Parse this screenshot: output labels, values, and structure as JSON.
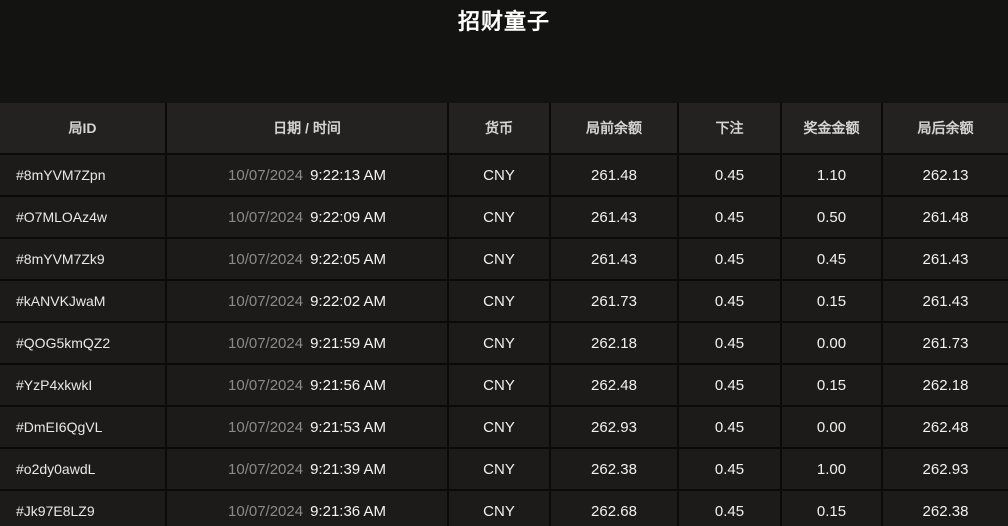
{
  "title": "招财童子",
  "colors": {
    "page_bg": "#131312",
    "header_cell_bg": "#232221",
    "body_cell_bg": "#1c1b1a",
    "grid_line": "#0a0a0a",
    "date_text": "#8a8a88",
    "primary_text": "#f2f1ef"
  },
  "table": {
    "headers": [
      "局ID",
      "日期 / 时间",
      "货币",
      "局前余额",
      "下注",
      "奖金金额",
      "局后余额"
    ],
    "rows": [
      {
        "id": "#8mYVM7Zpn",
        "date": "10/07/2024",
        "time": "9:22:13 AM",
        "currency": "CNY",
        "balance_before": "261.48",
        "bet": "0.45",
        "prize": "1.10",
        "balance_after": "262.13"
      },
      {
        "id": "#O7MLOAz4w",
        "date": "10/07/2024",
        "time": "9:22:09 AM",
        "currency": "CNY",
        "balance_before": "261.43",
        "bet": "0.45",
        "prize": "0.50",
        "balance_after": "261.48"
      },
      {
        "id": "#8mYVM7Zk9",
        "date": "10/07/2024",
        "time": "9:22:05 AM",
        "currency": "CNY",
        "balance_before": "261.43",
        "bet": "0.45",
        "prize": "0.45",
        "balance_after": "261.43"
      },
      {
        "id": "#kANVKJwaM",
        "date": "10/07/2024",
        "time": "9:22:02 AM",
        "currency": "CNY",
        "balance_before": "261.73",
        "bet": "0.45",
        "prize": "0.15",
        "balance_after": "261.43"
      },
      {
        "id": "#QOG5kmQZ2",
        "date": "10/07/2024",
        "time": "9:21:59 AM",
        "currency": "CNY",
        "balance_before": "262.18",
        "bet": "0.45",
        "prize": "0.00",
        "balance_after": "261.73"
      },
      {
        "id": "#YzP4xkwkI",
        "date": "10/07/2024",
        "time": "9:21:56 AM",
        "currency": "CNY",
        "balance_before": "262.48",
        "bet": "0.45",
        "prize": "0.15",
        "balance_after": "262.18"
      },
      {
        "id": "#DmEI6QgVL",
        "date": "10/07/2024",
        "time": "9:21:53 AM",
        "currency": "CNY",
        "balance_before": "262.93",
        "bet": "0.45",
        "prize": "0.00",
        "balance_after": "262.48"
      },
      {
        "id": "#o2dy0awdL",
        "date": "10/07/2024",
        "time": "9:21:39 AM",
        "currency": "CNY",
        "balance_before": "262.38",
        "bet": "0.45",
        "prize": "1.00",
        "balance_after": "262.93"
      },
      {
        "id": "#Jk97E8LZ9",
        "date": "10/07/2024",
        "time": "9:21:36 AM",
        "currency": "CNY",
        "balance_before": "262.68",
        "bet": "0.45",
        "prize": "0.15",
        "balance_after": "262.38"
      }
    ]
  }
}
